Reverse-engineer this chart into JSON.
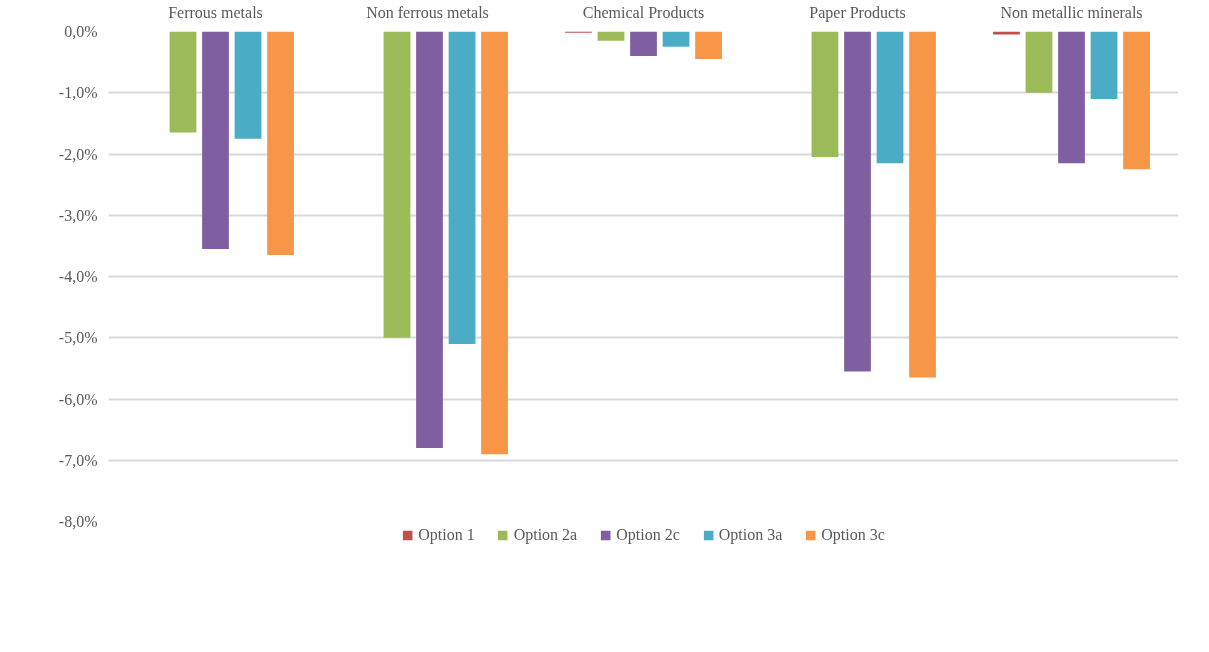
{
  "chart_data": {
    "type": "bar",
    "categories": [
      "Ferrous metals",
      "Non ferrous  metals",
      "Chemical Products",
      "Paper Products",
      "Non metallic minerals"
    ],
    "series": [
      {
        "name": "Option 1",
        "color": "#c0504d",
        "values": [
          0,
          0,
          -0.02,
          0,
          -0.05
        ]
      },
      {
        "name": "Option 2a",
        "color": "#9bbb59",
        "values": [
          -1.65,
          -5.0,
          -0.15,
          -2.05,
          -1.0
        ]
      },
      {
        "name": "Option 2c",
        "color": "#7f5fa0",
        "values": [
          -3.55,
          -6.8,
          -0.4,
          -5.55,
          -2.15
        ]
      },
      {
        "name": "Option 3a",
        "color": "#4bacc6",
        "values": [
          -1.75,
          -5.1,
          -0.25,
          -2.15,
          -1.1
        ]
      },
      {
        "name": "Option 3c",
        "color": "#f79646",
        "values": [
          -3.65,
          -6.9,
          -0.45,
          -5.65,
          -2.25
        ]
      }
    ],
    "ylim": [
      -8,
      0
    ],
    "yticks": [
      {
        "value": 0,
        "label": "0,0%"
      },
      {
        "value": -1,
        "label": "-1,0%"
      },
      {
        "value": -2,
        "label": "-2,0%"
      },
      {
        "value": -3,
        "label": "-3,0%"
      },
      {
        "value": -4,
        "label": "-4,0%"
      },
      {
        "value": -5,
        "label": "-5,0%"
      },
      {
        "value": -6,
        "label": "-6,0%"
      },
      {
        "value": -7,
        "label": "-7,0%"
      },
      {
        "value": -8,
        "label": "-8,0%"
      }
    ],
    "grid": "y",
    "legend": "bottom"
  }
}
